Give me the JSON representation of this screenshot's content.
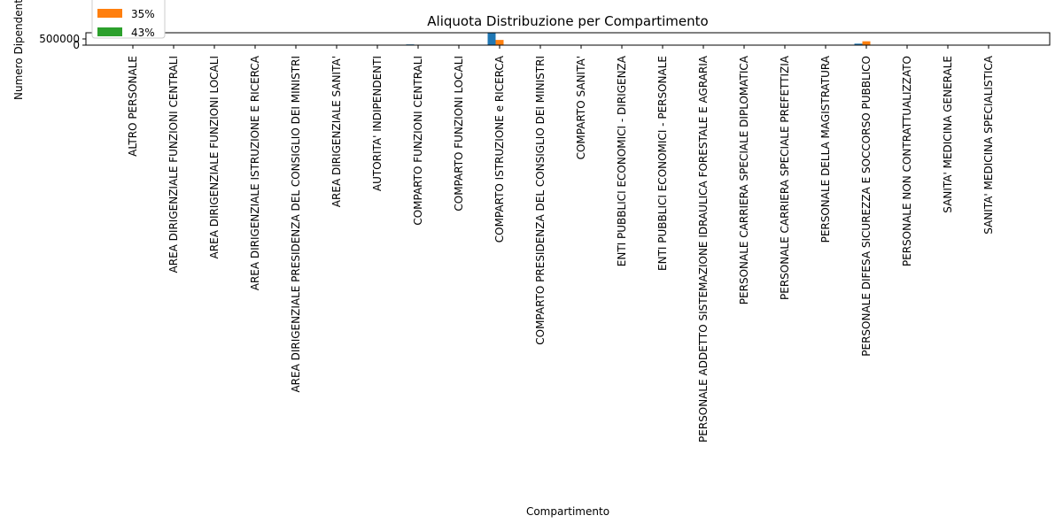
{
  "chart_data": {
    "type": "bar",
    "title": "Aliquota Distribuzione per Compartimento",
    "xlabel": "Compartimento",
    "ylabel": "Numero Dipendenti",
    "ylim": [
      0,
      1000000
    ],
    "yticks": [
      0,
      500000
    ],
    "legend_placement": "top-left",
    "grid": false,
    "categories": [
      "ALTRO PERSONALE",
      "AREA DIRIGENZIALE FUNZIONI CENTRALI",
      "AREA DIRIGENZIALE FUNZIONI LOCALI",
      "AREA DIRIGENZIALE ISTRUZIONE E RICERCA",
      "AREA DIRIGENZIALE PRESIDENZA DEL CONSIGLIO DEI MINISTRI",
      "AREA DIRIGENZIALE SANITA'",
      "AUTORITA' INDIPENDENTI",
      "COMPARTO FUNZIONI CENTRALI",
      "COMPARTO FUNZIONI LOCALI",
      "COMPARTO ISTRUZIONE e RICERCA",
      "COMPARTO PRESIDENZA DEL CONSIGLIO DEI MINISTRI",
      "COMPARTO SANITA'",
      "ENTI PUBBLICI ECONOMICI - DIRIGENZA",
      "ENTI PUBBLICI ECONOMICI - PERSONALE",
      "PERSONALE ADDETTO SISTEMAZIONE IDRAULICA FORESTALE E AGRARIA",
      "PERSONALE CARRIERA SPECIALE DIPLOMATICA",
      "PERSONALE CARRIERA SPECIALE PREFETTIZIA",
      "PERSONALE DELLA MAGISTRATURA",
      "PERSONALE DIFESA  SICUREZZA E SOCCORSO PUBBLICO",
      "PERSONALE NON CONTRATTUALIZZATO",
      "SANITA' MEDICINA GENERALE",
      "SANITA' MEDICINA SPECIALISTICA"
    ],
    "series": [
      {
        "name": "",
        "color": "#1f77b4",
        "values": [
          0,
          0,
          0,
          0,
          0,
          0,
          0,
          60000,
          0,
          1000000,
          0,
          0,
          0,
          0,
          0,
          0,
          0,
          0,
          120000,
          0,
          0,
          0
        ]
      },
      {
        "name": "35%",
        "color": "#ff7f0e",
        "values": [
          0,
          0,
          0,
          0,
          0,
          0,
          0,
          20000,
          0,
          420000,
          0,
          0,
          0,
          0,
          0,
          0,
          0,
          0,
          310000,
          0,
          0,
          0
        ]
      },
      {
        "name": "43%",
        "color": "#2ca02c",
        "values": [
          0,
          0,
          0,
          0,
          0,
          0,
          0,
          0,
          0,
          0,
          0,
          0,
          0,
          0,
          0,
          0,
          0,
          0,
          0,
          0,
          0,
          0
        ]
      }
    ]
  }
}
